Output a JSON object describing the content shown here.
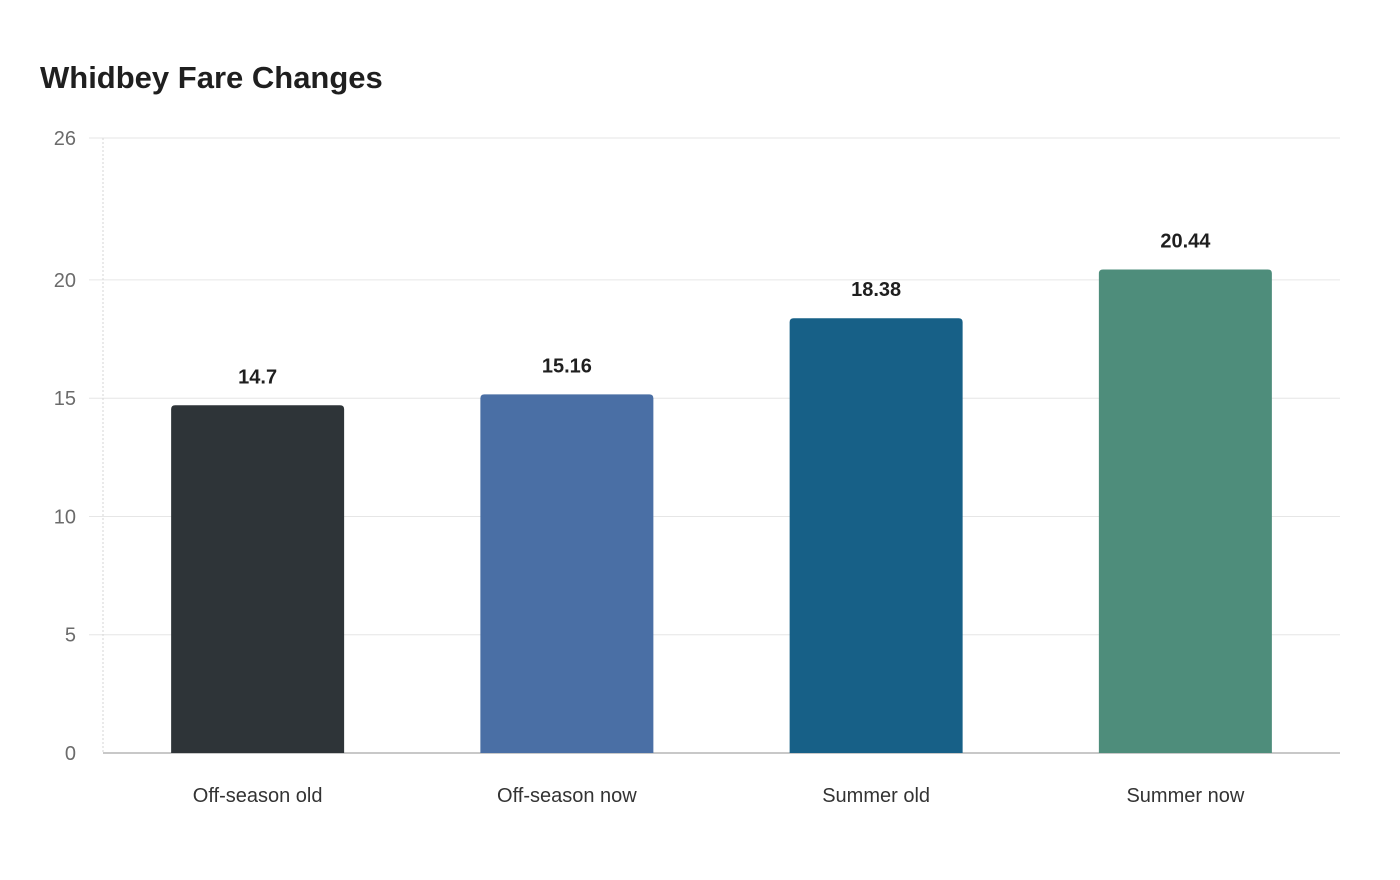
{
  "chart_data": {
    "type": "bar",
    "title": "Whidbey Fare Changes",
    "xlabel": "",
    "ylabel": "",
    "categories": [
      "Off-season old",
      "Off-season now",
      "Summer old",
      "Summer now"
    ],
    "values": [
      14.7,
      15.16,
      18.38,
      20.44
    ],
    "data_labels": [
      "14.7",
      "15.16",
      "18.38",
      "20.44"
    ],
    "colors": [
      "#2e3438",
      "#4a6fa5",
      "#176087",
      "#4e8d7b"
    ],
    "ylim": [
      0,
      26
    ],
    "yticks": [
      0,
      5,
      10,
      15,
      20,
      26
    ],
    "grid": true,
    "legend": "none"
  }
}
